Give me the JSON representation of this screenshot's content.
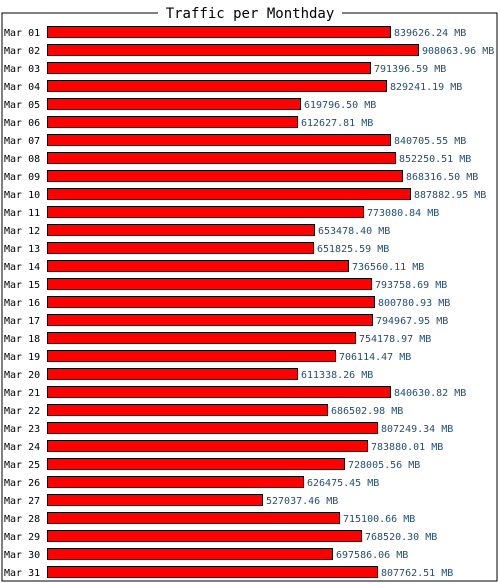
{
  "chart_data": {
    "type": "bar",
    "orientation": "horizontal",
    "title": "Traffic per Monthday",
    "unit": "MB",
    "bar_color": "#ff0000",
    "bar_border_color": "#000000",
    "label_color": "#1f4e79",
    "categories": [
      "Mar 01",
      "Mar 02",
      "Mar 03",
      "Mar 04",
      "Mar 05",
      "Mar 06",
      "Mar 07",
      "Mar 08",
      "Mar 09",
      "Mar 10",
      "Mar 11",
      "Mar 12",
      "Mar 13",
      "Mar 14",
      "Mar 15",
      "Mar 16",
      "Mar 17",
      "Mar 18",
      "Mar 19",
      "Mar 20",
      "Mar 21",
      "Mar 22",
      "Mar 23",
      "Mar 24",
      "Mar 25",
      "Mar 26",
      "Mar 27",
      "Mar 28",
      "Mar 29",
      "Mar 30",
      "Mar 31"
    ],
    "values": [
      839626.24,
      908063.96,
      791396.59,
      829241.19,
      619796.5,
      612627.81,
      840705.55,
      852250.51,
      868316.5,
      887882.95,
      773080.84,
      653478.4,
      651825.59,
      736560.11,
      793758.69,
      800780.93,
      794967.95,
      754178.97,
      706114.47,
      611338.26,
      840630.82,
      686502.98,
      807249.34,
      783880.01,
      728005.56,
      626475.45,
      527037.46,
      715100.66,
      768520.3,
      697586.06,
      807762.51
    ],
    "value_labels": [
      "839626.24 MB",
      "908063.96 MB",
      "791396.59 MB",
      "829241.19 MB",
      "619796.50 MB",
      "612627.81 MB",
      "840705.55 MB",
      "852250.51 MB",
      "868316.50 MB",
      "887882.95 MB",
      "773080.84 MB",
      "653478.40 MB",
      "651825.59 MB",
      "736560.11 MB",
      "793758.69 MB",
      "800780.93 MB",
      "794967.95 MB",
      "754178.97 MB",
      "706114.47 MB",
      "611338.26 MB",
      "840630.82 MB",
      "686502.98 MB",
      "807249.34 MB",
      "783880.01 MB",
      "728005.56 MB",
      "626475.45 MB",
      "527037.46 MB",
      "715100.66 MB",
      "768520.30 MB",
      "697586.06 MB",
      "807762.51 MB"
    ],
    "xlim": [
      0,
      908063.96
    ],
    "grid": false,
    "legend": "none"
  }
}
